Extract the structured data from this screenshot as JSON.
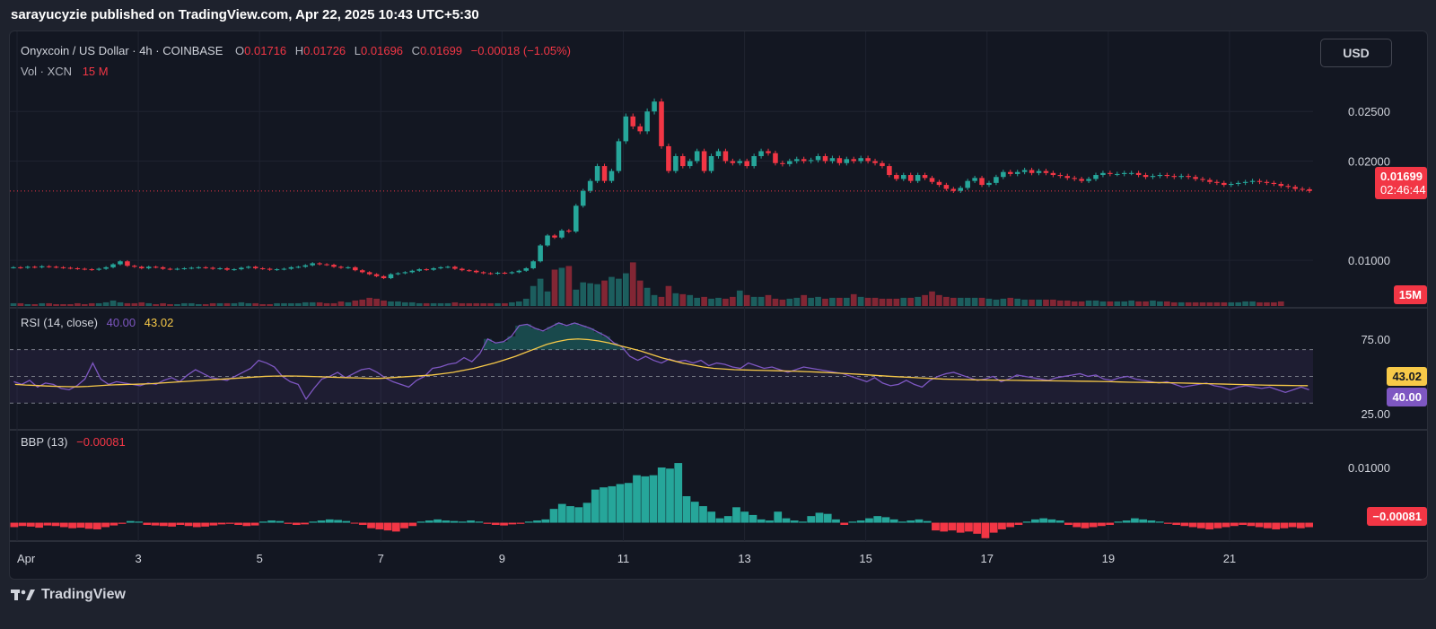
{
  "caption": "sarayucyzie published on TradingView.com, Apr 22, 2025 10:43 UTC+5:30",
  "currency_button": "USD",
  "legend": {
    "title": "Onyxcoin / US Dollar · 4h · COINBASE",
    "o_key": "O",
    "o_val": "0.01716",
    "h_key": "H",
    "h_val": "0.01726",
    "l_key": "L",
    "l_val": "0.01696",
    "c_key": "C",
    "c_val": "0.01699",
    "change": "−0.00018 (−1.05%)",
    "vol_label": "Vol · XCN",
    "vol_val": "15 M"
  },
  "rsi_legend": {
    "label": "RSI (14, close)",
    "rsi_val": "40.00",
    "ma_val": "43.02"
  },
  "bbp_legend": {
    "label": "BBP (13)",
    "val": "−0.00081"
  },
  "price_axis": [
    "0.02500",
    "0.02000",
    "0.01000"
  ],
  "rsi_axis": [
    "75.00",
    "25.00"
  ],
  "bbp_axis": [
    "0.01000"
  ],
  "tags": {
    "last_price": "0.01699",
    "countdown": "02:46:44",
    "volume": "15M",
    "rsi_ma": "43.02",
    "rsi": "40.00",
    "bbp": "−0.00081"
  },
  "x_axis_labels": [
    "Apr",
    "3",
    "5",
    "7",
    "9",
    "11",
    "13",
    "15",
    "17",
    "19",
    "21"
  ],
  "footer_brand": "TradingView",
  "colors": {
    "up": "#26a69a",
    "down": "#f23645",
    "rsi_line": "#7e57c2",
    "rsi_ma": "#f7c948",
    "grid": "#1f2330",
    "panel_bg": "#131722"
  },
  "chart_data": {
    "type": "candlestick",
    "symbol": "Onyxcoin / US Dollar",
    "interval": "4h",
    "exchange": "COINBASE",
    "x_labels": [
      "Apr",
      "3",
      "5",
      "7",
      "9",
      "11",
      "13",
      "15",
      "17",
      "19",
      "21"
    ],
    "price_ylim": [
      0.0054,
      0.029
    ],
    "close_series": [
      0.0093,
      0.00925,
      0.00935,
      0.0093,
      0.0094,
      0.00935,
      0.0093,
      0.00925,
      0.0092,
      0.00915,
      0.0091,
      0.00905,
      0.00915,
      0.0093,
      0.0096,
      0.0099,
      0.00945,
      0.00935,
      0.0092,
      0.00935,
      0.0093,
      0.00915,
      0.0091,
      0.00915,
      0.0092,
      0.00925,
      0.0093,
      0.00925,
      0.00915,
      0.0092,
      0.00905,
      0.0091,
      0.00925,
      0.00935,
      0.0092,
      0.00915,
      0.00905,
      0.0091,
      0.00915,
      0.0093,
      0.00935,
      0.0095,
      0.0097,
      0.0096,
      0.00955,
      0.00935,
      0.00925,
      0.0093,
      0.009,
      0.0088,
      0.0086,
      0.0084,
      0.0082,
      0.0086,
      0.0087,
      0.0088,
      0.00895,
      0.0091,
      0.00905,
      0.0092,
      0.0093,
      0.00935,
      0.00915,
      0.009,
      0.00895,
      0.0088,
      0.0087,
      0.00865,
      0.00875,
      0.0087,
      0.0088,
      0.00895,
      0.0092,
      0.0099,
      0.0115,
      0.0125,
      0.0123,
      0.013,
      0.0129,
      0.0155,
      0.017,
      0.018,
      0.0195,
      0.018,
      0.019,
      0.022,
      0.0245,
      0.0235,
      0.023,
      0.025,
      0.026,
      0.0215,
      0.019,
      0.0205,
      0.0195,
      0.02,
      0.021,
      0.019,
      0.0205,
      0.021,
      0.02,
      0.0198,
      0.02,
      0.0195,
      0.0205,
      0.021,
      0.0208,
      0.0198,
      0.0197,
      0.02,
      0.0202,
      0.02,
      0.0201,
      0.0205,
      0.02,
      0.0203,
      0.0198,
      0.0202,
      0.02,
      0.0203,
      0.02,
      0.0198,
      0.0195,
      0.0186,
      0.0182,
      0.0186,
      0.018,
      0.0186,
      0.0183,
      0.0179,
      0.0176,
      0.0172,
      0.017,
      0.0173,
      0.018,
      0.0183,
      0.0176,
      0.0178,
      0.0184,
      0.0189,
      0.0187,
      0.0189,
      0.0191,
      0.0188,
      0.019,
      0.0188,
      0.0186,
      0.0185,
      0.0183,
      0.0182,
      0.018,
      0.0182,
      0.0186,
      0.0188,
      0.0187,
      0.0187,
      0.0188,
      0.0188,
      0.0186,
      0.0184,
      0.0185,
      0.0186,
      0.0185,
      0.0184,
      0.0185,
      0.0184,
      0.0182,
      0.0181,
      0.0179,
      0.0178,
      0.0176,
      0.0177,
      0.0178,
      0.0179,
      0.018,
      0.0179,
      0.0178,
      0.0177,
      0.0175,
      0.0174,
      0.0172,
      0.01716,
      0.01699
    ],
    "volume_ylim": [
      0,
      80
    ],
    "volume_M": [
      3,
      3,
      2,
      2,
      3,
      3,
      2,
      2,
      2,
      3,
      2,
      3,
      3,
      4,
      6,
      4,
      3,
      3,
      4,
      3,
      2,
      3,
      2,
      2,
      3,
      3,
      2,
      2,
      3,
      3,
      3,
      3,
      4,
      3,
      3,
      2,
      2,
      3,
      3,
      3,
      3,
      4,
      4,
      4,
      3,
      3,
      5,
      4,
      6,
      7,
      9,
      8,
      6,
      5,
      5,
      4,
      4,
      3,
      3,
      3,
      3,
      3,
      4,
      3,
      3,
      3,
      3,
      3,
      3,
      3,
      4,
      5,
      8,
      22,
      30,
      16,
      40,
      42,
      44,
      18,
      26,
      25,
      24,
      28,
      32,
      30,
      36,
      48,
      28,
      20,
      12,
      10,
      22,
      14,
      13,
      12,
      9,
      10,
      8,
      9,
      8,
      10,
      17,
      12,
      10,
      10,
      12,
      8,
      7,
      8,
      9,
      12,
      9,
      10,
      8,
      9,
      9,
      9,
      13,
      10,
      9,
      9,
      8,
      8,
      8,
      9,
      9,
      10,
      12,
      16,
      12,
      10,
      9,
      9,
      9,
      9,
      9,
      8,
      7,
      8,
      9,
      8,
      7,
      7,
      7,
      7,
      7,
      6,
      6,
      5,
      5,
      6,
      6,
      5,
      5,
      5,
      5,
      6,
      5,
      5,
      6,
      5,
      5,
      4,
      4,
      4,
      4,
      4,
      4,
      4,
      4,
      4,
      4,
      5,
      5,
      4,
      4,
      4,
      5
    ],
    "rsi_ylim": [
      10,
      100
    ],
    "rsi_bands": [
      70,
      50,
      30
    ],
    "rsi_series": [
      46,
      44,
      47,
      42,
      45,
      44,
      41,
      40,
      43,
      48,
      60,
      48,
      44,
      46,
      45,
      44,
      43,
      45,
      44,
      47,
      49,
      46,
      51,
      55,
      52,
      49,
      48,
      47,
      50,
      53,
      56,
      62,
      60,
      57,
      50,
      46,
      44,
      33,
      41,
      48,
      50,
      53,
      49,
      52,
      55,
      56,
      53,
      49,
      46,
      44,
      42,
      47,
      50,
      56,
      57,
      59,
      60,
      64,
      61,
      67,
      78,
      75,
      76,
      80,
      88,
      89,
      86,
      84,
      87,
      90,
      88,
      90,
      88,
      86,
      83,
      80,
      75,
      72,
      65,
      62,
      65,
      62,
      60,
      63,
      61,
      62,
      60,
      62,
      58,
      60,
      59,
      57,
      56,
      60,
      58,
      56,
      57,
      55,
      53,
      55,
      57,
      56,
      55,
      54,
      53,
      52,
      50,
      48,
      46,
      49,
      45,
      43,
      44,
      47,
      44,
      42,
      47,
      50,
      52,
      53,
      51,
      49,
      47,
      48,
      50,
      46,
      48,
      51,
      50,
      49,
      48,
      47,
      49,
      50,
      51,
      52,
      50,
      51,
      48,
      47,
      49,
      50,
      48,
      47,
      46,
      45,
      46,
      44,
      42,
      43,
      44,
      45,
      43,
      42,
      40,
      42,
      43,
      42,
      41,
      42,
      40,
      38,
      40,
      42,
      40
    ],
    "rsi_ma_series": [
      44,
      43.5,
      43.2,
      42.8,
      42.5,
      42.3,
      42.2,
      42.5,
      43,
      43.5,
      43.8,
      44,
      44.2,
      44.5,
      45,
      45.5,
      46,
      46.5,
      47,
      47.5,
      48,
      48.5,
      49,
      49.5,
      50,
      50.2,
      50.3,
      50.2,
      50,
      49.8,
      49.5,
      49.2,
      49,
      48.8,
      48.5,
      48.5,
      49,
      49.5,
      50,
      50.5,
      51,
      52,
      53,
      54.5,
      56,
      58,
      60,
      62.5,
      65,
      68,
      71,
      74,
      76,
      77.5,
      78,
      77.5,
      76.5,
      75,
      73,
      71,
      69,
      66.5,
      64,
      62,
      60,
      58.5,
      57,
      56,
      55.5,
      55,
      54.8,
      54.6,
      54.4,
      54.2,
      54,
      53.8,
      53.5,
      53.2,
      52.8,
      52.4,
      52,
      51.5,
      51,
      50.5,
      50,
      49.6,
      49.2,
      48.8,
      48.4,
      48,
      47.8,
      47.6,
      47.4,
      47.3,
      47.2,
      47.1,
      47,
      46.9,
      46.8,
      46.7,
      46.6,
      46.5,
      46.4,
      46.3,
      46.2,
      46,
      45.8,
      45.6,
      45.5,
      45.4,
      45.3,
      45.2,
      45,
      44.8,
      44.6,
      44.4,
      44.2,
      44,
      43.8,
      43.6,
      43.4,
      43.3,
      43.2,
      43.1,
      43.02
    ],
    "bbp_ylim": [
      -0.003,
      0.0165
    ],
    "bbp_series": [
      -0.0008,
      -0.0006,
      -0.0007,
      -0.0009,
      -0.0005,
      -0.0006,
      -0.0008,
      -0.001,
      -0.0009,
      -0.0011,
      -0.0012,
      -0.0008,
      -0.0005,
      -0.0002,
      0.0003,
      0.0002,
      -0.0004,
      -0.0005,
      -0.0006,
      -0.0007,
      -0.0004,
      -0.0006,
      -0.0008,
      -0.0007,
      -0.0005,
      -0.0003,
      -0.0002,
      -0.0004,
      -0.0006,
      -0.0005,
      0.0002,
      0.0004,
      0.0003,
      -0.0002,
      -0.0004,
      -0.0003,
      0.0002,
      0.0004,
      0.0006,
      0.0005,
      0.0003,
      -0.0001,
      -0.0004,
      -0.001,
      -0.0012,
      -0.0014,
      -0.0016,
      -0.001,
      -0.0006,
      0.0002,
      0.0004,
      0.0006,
      0.0004,
      0.0003,
      0.0002,
      0.0004,
      0.0002,
      -0.0002,
      -0.0004,
      -0.0005,
      -0.0003,
      -0.0002,
      0.0002,
      0.0004,
      0.0006,
      0.0025,
      0.0034,
      0.003,
      0.0028,
      0.0036,
      0.006,
      0.0064,
      0.0066,
      0.007,
      0.0072,
      0.0086,
      0.0084,
      0.0086,
      0.01,
      0.0098,
      0.0108,
      0.0048,
      0.0038,
      0.003,
      0.002,
      0.0008,
      0.0012,
      0.0028,
      0.002,
      0.0014,
      0.0006,
      0.0004,
      0.002,
      0.0008,
      0.0004,
      0.0002,
      0.0012,
      0.0018,
      0.0016,
      0.0006,
      -0.0004,
      0.0002,
      0.0004,
      0.0008,
      0.0012,
      0.001,
      0.0006,
      0.0002,
      0.0004,
      0.0006,
      0.0003,
      -0.0014,
      -0.0016,
      -0.0014,
      -0.0018,
      -0.0016,
      -0.002,
      -0.0028,
      -0.0018,
      -0.0012,
      -0.0008,
      -0.0004,
      0.0002,
      0.0006,
      0.0008,
      0.0006,
      0.0004,
      -0.0004,
      -0.0008,
      -0.001,
      -0.0008,
      -0.0006,
      -0.0004,
      0.0002,
      0.0004,
      0.0008,
      0.0006,
      0.0004,
      0.0002,
      -0.0002,
      -0.0004,
      -0.0006,
      -0.0008,
      -0.001,
      -0.0012,
      -0.001,
      -0.0008,
      -0.0006,
      -0.0004,
      -0.0006,
      -0.0008,
      -0.001,
      -0.0012,
      -0.001,
      -0.0008,
      -0.001,
      -0.00081
    ]
  }
}
